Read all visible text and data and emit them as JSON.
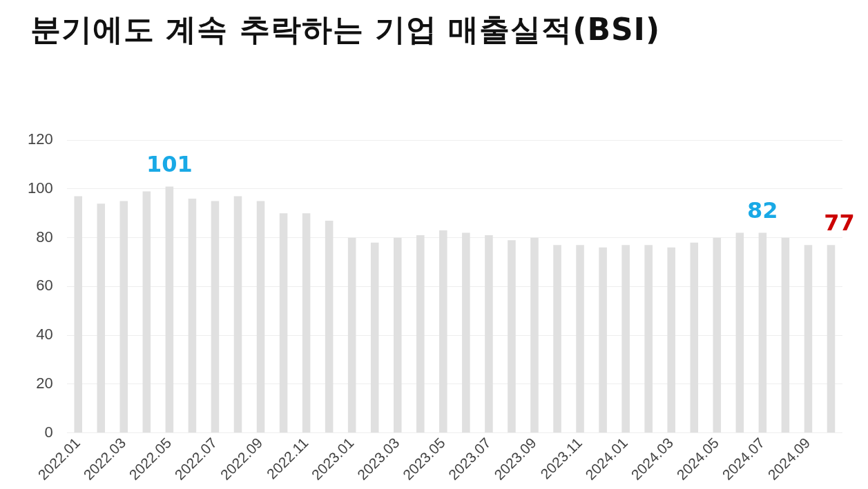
{
  "chart_data": {
    "type": "bar",
    "title": "분기에도 계속 추락하는 기업 매출실적(BSI)",
    "categories": [
      "2022.01",
      null,
      "2022.03",
      null,
      "2022.05",
      null,
      "2022.07",
      null,
      "2022.09",
      null,
      "2022.11",
      null,
      "2023.01",
      null,
      "2023.03",
      null,
      "2023.05",
      null,
      "2023.07",
      null,
      "2023.09",
      null,
      "2023.11",
      null,
      "2024.01",
      null,
      "2024.03",
      null,
      "2024.05",
      null,
      "2024.07",
      null,
      "2024.09",
      null
    ],
    "values": [
      97,
      94,
      95,
      99,
      101,
      96,
      95,
      97,
      95,
      90,
      90,
      87,
      80,
      78,
      80,
      81,
      83,
      82,
      81,
      79,
      80,
      77,
      77,
      76,
      77,
      77,
      76,
      78,
      80,
      82,
      82,
      80,
      77,
      77
    ],
    "value_labels": [
      null,
      null,
      null,
      null,
      "101",
      null,
      null,
      null,
      null,
      null,
      null,
      null,
      null,
      null,
      null,
      null,
      null,
      null,
      null,
      null,
      null,
      null,
      null,
      null,
      null,
      null,
      null,
      null,
      null,
      null,
      "82",
      null,
      null,
      "77"
    ],
    "color": "#e0e0e0",
    "ylim": [
      0,
      120
    ],
    "yticks": [
      0,
      20,
      40,
      60,
      80,
      100,
      120
    ],
    "grid": "y"
  }
}
